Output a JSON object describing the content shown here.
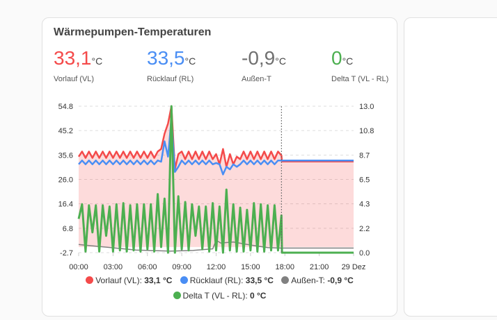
{
  "card": {
    "title": "Wärmepumpen-Temperaturen",
    "stats": [
      {
        "value": "33,1",
        "unit": "°C",
        "label": "Vorlauf (VL)",
        "color": "#f44a4a"
      },
      {
        "value": "33,5",
        "unit": "°C",
        "label": "Rücklauf (RL)",
        "color": "#4a8ef4"
      },
      {
        "value": "-0,9",
        "unit": "°C",
        "label": "Außen-T",
        "color": "#707070"
      },
      {
        "value": "0",
        "unit": "°C",
        "label": "Delta T (VL - RL)",
        "color": "#4caf50"
      }
    ]
  },
  "chart_data": {
    "type": "line",
    "x_ticks": [
      "00:00",
      "03:00",
      "06:00",
      "09:00",
      "12:00",
      "15:00",
      "18:00",
      "21:00",
      "29 Dez"
    ],
    "x_unit": "hours",
    "xlim": [
      0,
      24
    ],
    "y_left_ticks": [
      "54.8",
      "45.2",
      "35.6",
      "26.0",
      "16.4",
      "6.8",
      "-2.7"
    ],
    "ylim_left": [
      -2.7,
      54.8
    ],
    "y_right_ticks": [
      "13.0",
      "10.8",
      "8.7",
      "6.5",
      "4.3",
      "2.2",
      "0.0"
    ],
    "ylim_right": [
      0,
      13
    ],
    "now_marker_hour": 17.7,
    "grid": true,
    "legend_placement": "bottom",
    "series": [
      {
        "name": "Vorlauf (VL)",
        "current": "33,1 °C",
        "color": "#f44a4a",
        "axis": "left",
        "step": 0.3,
        "flat_after": 33.1,
        "values": [
          35,
          37,
          34.5,
          37,
          34.5,
          37,
          34.5,
          37,
          34.5,
          37,
          34.5,
          37,
          34.5,
          37,
          34.5,
          37,
          34.5,
          37,
          34.5,
          37,
          34.5,
          37,
          34.5,
          37,
          38,
          44,
          48,
          54.8,
          30,
          36,
          37,
          34,
          37,
          34,
          37,
          34,
          37,
          34,
          37,
          34,
          36,
          32,
          38,
          31,
          36,
          32,
          35,
          34,
          37,
          34,
          37,
          34,
          37,
          34,
          37,
          34,
          37,
          34,
          37,
          35.5
        ]
      },
      {
        "name": "Rücklauf (RL)",
        "current": "33,5 °C",
        "color": "#4a8ef4",
        "axis": "left",
        "step": 0.3,
        "flat_after": 33.5,
        "values": [
          32,
          33.5,
          32,
          33.5,
          32,
          33.5,
          32,
          33.5,
          32,
          33.5,
          32,
          33.5,
          32,
          33.5,
          32,
          33.5,
          32,
          33.5,
          32,
          33.5,
          32,
          33.5,
          32,
          33.5,
          33,
          41,
          35,
          50,
          29,
          31,
          33.5,
          32,
          33.5,
          32,
          33.5,
          32,
          33.5,
          32,
          33.5,
          32,
          32.5,
          32,
          28,
          31,
          30,
          32,
          31,
          32,
          33.5,
          32,
          33.5,
          32,
          33.5,
          32,
          33.5,
          32,
          33.5,
          32,
          33.5,
          33.5
        ]
      },
      {
        "name": "Außen-T",
        "current": "-0,9 °C",
        "color": "#808080",
        "axis": "left",
        "points": [
          [
            0,
            0.5
          ],
          [
            3,
            -0.8
          ],
          [
            5,
            -1.7
          ],
          [
            8,
            -2.1
          ],
          [
            10,
            -1.8
          ],
          [
            11.7,
            -1.2
          ],
          [
            12,
            2.2
          ],
          [
            12.4,
            1.1
          ],
          [
            13.5,
            1.5
          ],
          [
            15,
            0.3
          ],
          [
            16.5,
            -0.7
          ],
          [
            17.7,
            -0.9
          ],
          [
            24,
            -0.9
          ]
        ]
      },
      {
        "name": "Delta T (VL - RL)",
        "current": "0 °C",
        "color": "#4caf50",
        "axis": "right",
        "step": 0.3,
        "flat_after": 0,
        "values": [
          3,
          4.3,
          0.1,
          4.2,
          1.8,
          4.2,
          0.1,
          4.2,
          1.5,
          4.1,
          0.1,
          4.3,
          0.2,
          4.4,
          0.1,
          4.2,
          0.2,
          4.3,
          0.1,
          4.3,
          0.3,
          4.3,
          0.1,
          5.2,
          0.5,
          4.8,
          0,
          13,
          0,
          5,
          0.3,
          4.5,
          0.2,
          4.3,
          1.5,
          4.1,
          0.3,
          4.1,
          0.1,
          4.4,
          0.2,
          4.1,
          0,
          5.6,
          0.2,
          4.3,
          0.1,
          4.0,
          0.1,
          3.8,
          0.2,
          4.4,
          0.1,
          4.3,
          0.1,
          4.2,
          0.2,
          4.2,
          0.2,
          3.3
        ]
      }
    ]
  }
}
